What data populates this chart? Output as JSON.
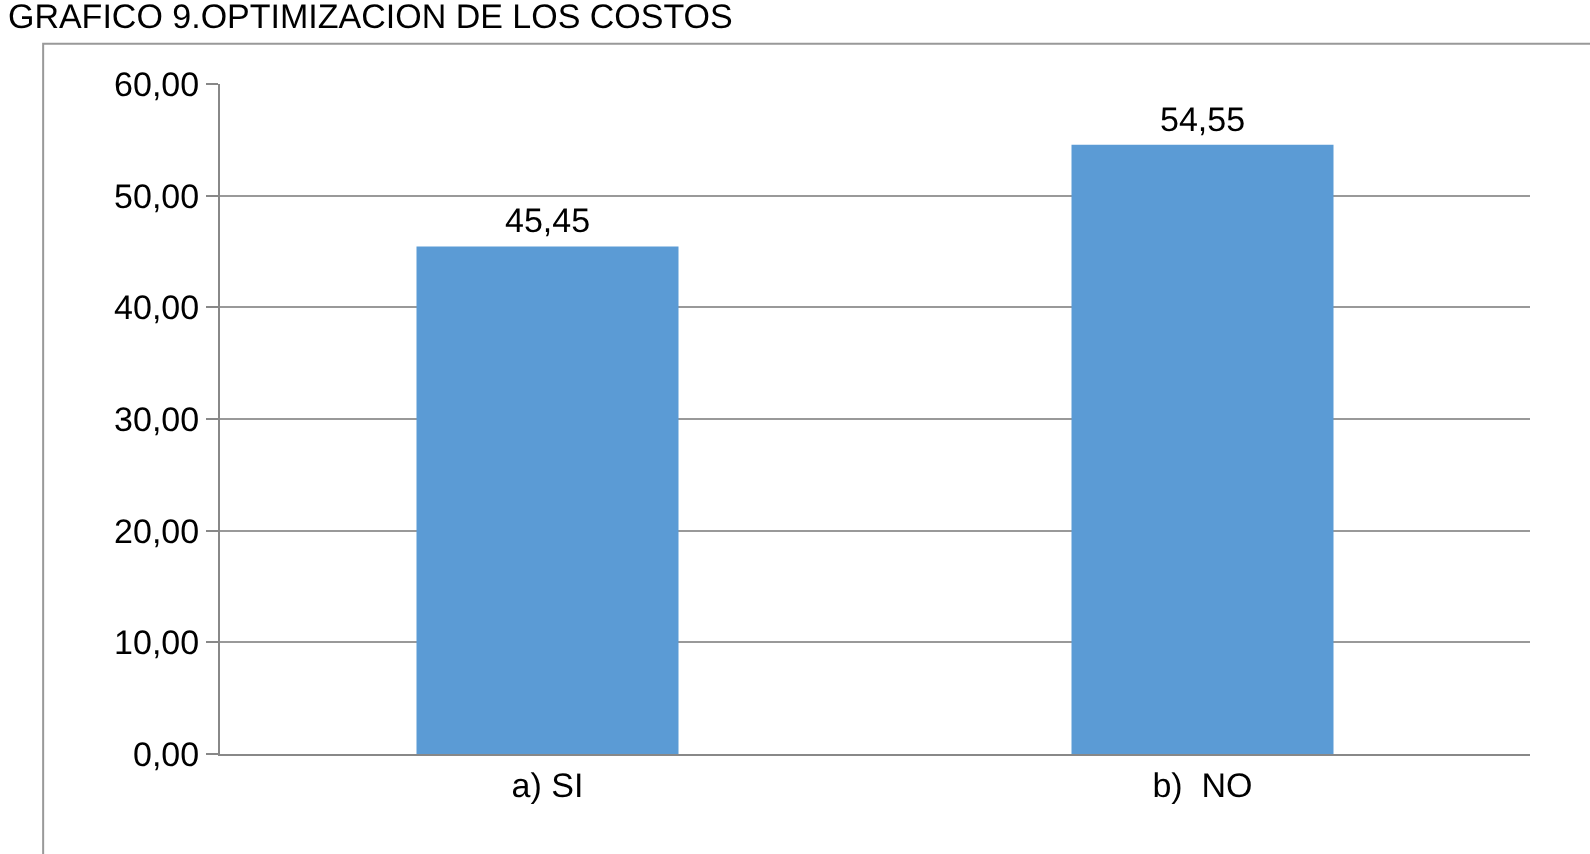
{
  "chart_data": {
    "type": "bar",
    "title": "GRAFICO 9.OPTIMIZACION DE LOS COSTOS",
    "categories": [
      "a) SI",
      "b)  NO"
    ],
    "values": [
      45.45,
      54.55
    ],
    "value_labels": [
      "45,45",
      "54,55"
    ],
    "color": "#5b9bd5",
    "ylim": [
      0,
      60
    ],
    "yticks": [
      {
        "value": 0,
        "label": "0,00"
      },
      {
        "value": 10,
        "label": "10,00"
      },
      {
        "value": 20,
        "label": "20,00"
      },
      {
        "value": 30,
        "label": "30,00"
      },
      {
        "value": 40,
        "label": "40,00"
      },
      {
        "value": 50,
        "label": "50,00"
      },
      {
        "value": 60,
        "label": "60,00"
      }
    ],
    "grid": "y"
  }
}
